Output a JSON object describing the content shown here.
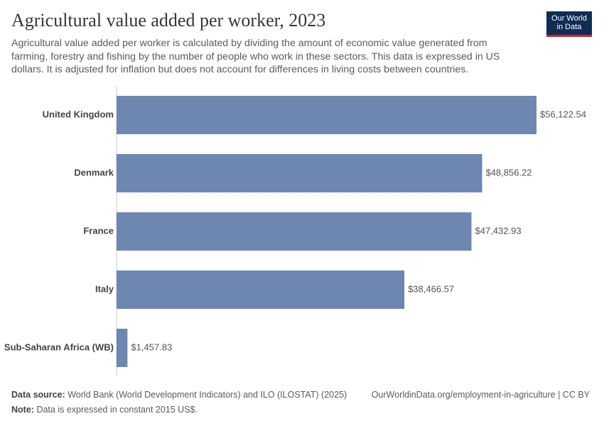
{
  "chart_data": {
    "type": "bar",
    "orientation": "horizontal",
    "title": "Agricultural value added per worker, 2023",
    "subtitle": "Agricultural value added per worker is calculated by dividing the amount of economic value generated from farming, forestry and fishing by the number of people who work in these sectors. This data is expressed in US dollars. It is adjusted for inflation but does not account for differences in living costs between countries.",
    "categories": [
      "United Kingdom",
      "Denmark",
      "France",
      "Italy",
      "Sub-Saharan Africa (WB)"
    ],
    "values": [
      56122.54,
      48856.22,
      47432.93,
      38466.57,
      1457.83
    ],
    "value_labels": [
      "$56,122.54",
      "$48,856.22",
      "$47,432.93",
      "$38,466.57",
      "$1,457.83"
    ],
    "color": "#6d87b1"
  },
  "logo": {
    "line1": "Our World",
    "line2": "in Data"
  },
  "footer": {
    "source_label": "Data source:",
    "source": "World Bank (World Development Indicators) and ILO (ILOSTAT) (2025)",
    "url": "OurWorldinData.org/employment-in-agriculture | CC BY",
    "note_label": "Note:",
    "note": "Data is expressed in constant 2015 US$."
  }
}
